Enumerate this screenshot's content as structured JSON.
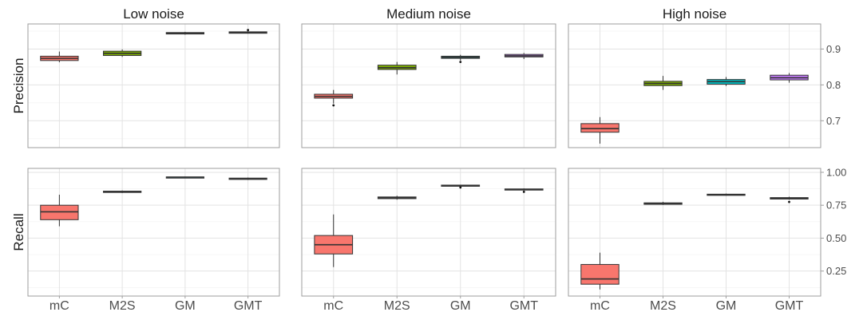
{
  "chart_data": {
    "type": "box",
    "categories": [
      "mC",
      "M2S",
      "GM",
      "GMT"
    ],
    "colors": {
      "mC": "#f8766d",
      "M2S": "#7cae00",
      "GM": "#00bfc4",
      "GMT": "#c77cff"
    },
    "columns": [
      "Low noise",
      "Medium noise",
      "High noise"
    ],
    "rows": [
      {
        "label": "Precision",
        "ylim": [
          0.625,
          0.97
        ],
        "yticks": [
          0.7,
          0.8,
          0.9
        ],
        "ytick_labels": [
          "0.7",
          "0.8",
          "0.9"
        ],
        "facets": [
          {
            "column": "Low noise",
            "boxes": [
              {
                "category": "mC",
                "min": 0.863,
                "q1": 0.868,
                "median": 0.874,
                "q3": 0.88,
                "max": 0.893
              },
              {
                "category": "M2S",
                "min": 0.878,
                "q1": 0.882,
                "median": 0.888,
                "q3": 0.894,
                "max": 0.899
              },
              {
                "category": "GM",
                "min": 0.94,
                "q1": 0.942,
                "median": 0.944,
                "q3": 0.946,
                "max": 0.948
              },
              {
                "category": "GMT",
                "min": 0.943,
                "q1": 0.944,
                "median": 0.946,
                "q3": 0.948,
                "max": 0.951,
                "outliers": [
                  0.953
                ]
              }
            ]
          },
          {
            "column": "Medium noise",
            "boxes": [
              {
                "category": "mC",
                "min": 0.748,
                "q1": 0.763,
                "median": 0.768,
                "q3": 0.774,
                "max": 0.786,
                "outliers": [
                  0.743
                ]
              },
              {
                "category": "M2S",
                "min": 0.829,
                "q1": 0.843,
                "median": 0.848,
                "q3": 0.855,
                "max": 0.864
              },
              {
                "category": "GM",
                "min": 0.868,
                "q1": 0.874,
                "median": 0.877,
                "q3": 0.88,
                "max": 0.884,
                "outliers": [
                  0.864
                ]
              },
              {
                "category": "GMT",
                "min": 0.872,
                "q1": 0.878,
                "median": 0.881,
                "q3": 0.885,
                "max": 0.889
              }
            ]
          },
          {
            "column": "High noise",
            "boxes": [
              {
                "category": "mC",
                "min": 0.636,
                "q1": 0.668,
                "median": 0.678,
                "q3": 0.692,
                "max": 0.71
              },
              {
                "category": "M2S",
                "min": 0.786,
                "q1": 0.798,
                "median": 0.804,
                "q3": 0.81,
                "max": 0.825
              },
              {
                "category": "GM",
                "min": 0.797,
                "q1": 0.802,
                "median": 0.809,
                "q3": 0.815,
                "max": 0.822
              },
              {
                "category": "GMT",
                "min": 0.806,
                "q1": 0.814,
                "median": 0.82,
                "q3": 0.827,
                "max": 0.833
              }
            ]
          }
        ]
      },
      {
        "label": "Recall",
        "ylim": [
          0.06,
          1.03
        ],
        "yticks": [
          0.25,
          0.5,
          0.75,
          1.0
        ],
        "ytick_labels": [
          "0.25",
          "0.50",
          "0.75",
          "1.00"
        ],
        "facets": [
          {
            "column": "Low noise",
            "boxes": [
              {
                "category": "mC",
                "min": 0.59,
                "q1": 0.64,
                "median": 0.7,
                "q3": 0.75,
                "max": 0.83
              },
              {
                "category": "M2S",
                "min": 0.843,
                "q1": 0.847,
                "median": 0.852,
                "q3": 0.857,
                "max": 0.862
              },
              {
                "category": "GM",
                "min": 0.958,
                "q1": 0.961,
                "median": 0.963,
                "q3": 0.965,
                "max": 0.968
              },
              {
                "category": "GMT",
                "min": 0.942,
                "q1": 0.946,
                "median": 0.951,
                "q3": 0.956,
                "max": 0.96
              }
            ]
          },
          {
            "column": "Medium noise",
            "boxes": [
              {
                "category": "mC",
                "min": 0.28,
                "q1": 0.38,
                "median": 0.45,
                "q3": 0.52,
                "max": 0.68
              },
              {
                "category": "M2S",
                "min": 0.792,
                "q1": 0.8,
                "median": 0.807,
                "q3": 0.813,
                "max": 0.822
              },
              {
                "category": "GM",
                "min": 0.893,
                "q1": 0.897,
                "median": 0.9,
                "q3": 0.903,
                "max": 0.906,
                "outliers": [
                  0.885
                ]
              },
              {
                "category": "GMT",
                "min": 0.862,
                "q1": 0.866,
                "median": 0.87,
                "q3": 0.874,
                "max": 0.878,
                "outliers": [
                  0.852
                ]
              }
            ]
          },
          {
            "column": "High noise",
            "boxes": [
              {
                "category": "mC",
                "min": 0.11,
                "q1": 0.15,
                "median": 0.19,
                "q3": 0.3,
                "max": 0.39
              },
              {
                "category": "M2S",
                "min": 0.752,
                "q1": 0.757,
                "median": 0.762,
                "q3": 0.768,
                "max": 0.776
              },
              {
                "category": "GM",
                "min": 0.822,
                "q1": 0.826,
                "median": 0.83,
                "q3": 0.834,
                "max": 0.838
              },
              {
                "category": "GMT",
                "min": 0.792,
                "q1": 0.797,
                "median": 0.802,
                "q3": 0.808,
                "max": 0.815,
                "outliers": [
                  0.775
                ]
              }
            ]
          }
        ]
      }
    ],
    "grid": true,
    "legend": "none"
  }
}
